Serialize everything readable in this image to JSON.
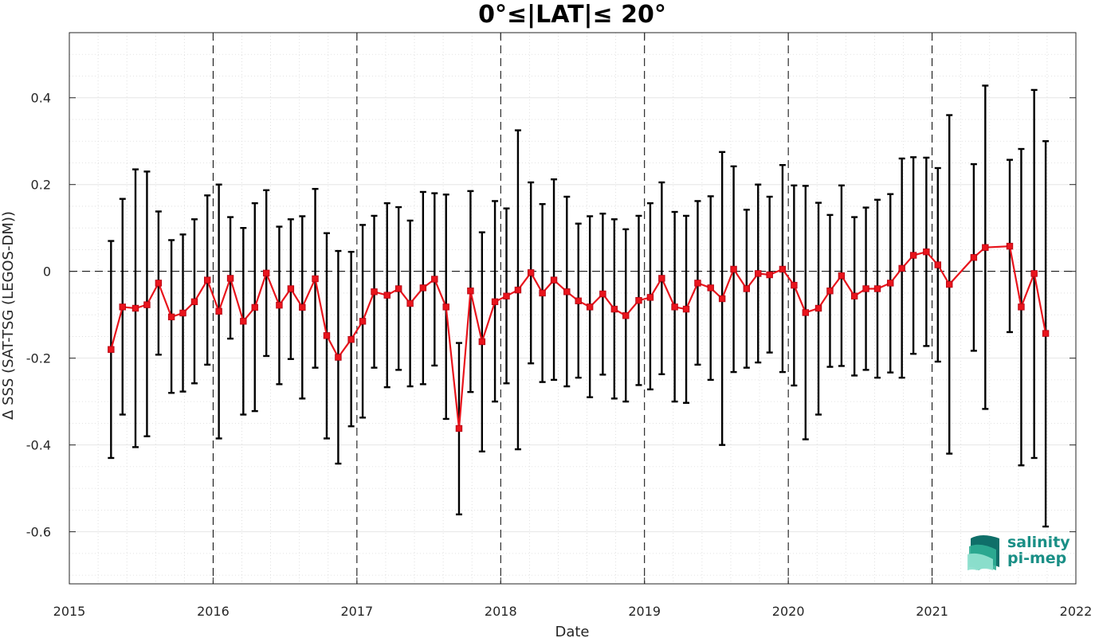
{
  "chart_data": {
    "type": "line",
    "title": "0°≤|LAT|≤ 20°",
    "xlabel": "Date",
    "ylabel": "Δ SSS (SAT-TSG (LEGOS-DM))",
    "xlim": [
      2015,
      2022
    ],
    "ylim": [
      -0.72,
      0.55
    ],
    "x_ticks": [
      2015,
      2016,
      2017,
      2018,
      2019,
      2020,
      2021,
      2022
    ],
    "y_ticks": [
      {
        "value": 0.4,
        "label": "0.4"
      },
      {
        "value": 0.2,
        "label": "0.2"
      },
      {
        "value": 0,
        "label": "0"
      },
      {
        "value": -0.2,
        "label": "-0.2"
      },
      {
        "value": -0.4,
        "label": "-0.4"
      },
      {
        "value": -0.6,
        "label": "-0.6"
      }
    ],
    "grid": true,
    "series": [
      {
        "color": "#e8141c",
        "marker": "square",
        "points": [
          {
            "x": 2015.29,
            "y": -0.18,
            "lo": -0.43,
            "hi": 0.07
          },
          {
            "x": 2015.37,
            "y": -0.082,
            "lo": -0.33,
            "hi": 0.167
          },
          {
            "x": 2015.46,
            "y": -0.085,
            "lo": -0.405,
            "hi": 0.235
          },
          {
            "x": 2015.54,
            "y": -0.077,
            "lo": -0.38,
            "hi": 0.23
          },
          {
            "x": 2015.62,
            "y": -0.027,
            "lo": -0.192,
            "hi": 0.138
          },
          {
            "x": 2015.71,
            "y": -0.105,
            "lo": -0.28,
            "hi": 0.072
          },
          {
            "x": 2015.79,
            "y": -0.096,
            "lo": -0.277,
            "hi": 0.085
          },
          {
            "x": 2015.87,
            "y": -0.07,
            "lo": -0.258,
            "hi": 0.12
          },
          {
            "x": 2015.96,
            "y": -0.02,
            "lo": -0.215,
            "hi": 0.175
          },
          {
            "x": 2016.04,
            "y": -0.092,
            "lo": -0.385,
            "hi": 0.2
          },
          {
            "x": 2016.12,
            "y": -0.016,
            "lo": -0.155,
            "hi": 0.125
          },
          {
            "x": 2016.21,
            "y": -0.115,
            "lo": -0.33,
            "hi": 0.1
          },
          {
            "x": 2016.29,
            "y": -0.083,
            "lo": -0.322,
            "hi": 0.157
          },
          {
            "x": 2016.37,
            "y": -0.004,
            "lo": -0.195,
            "hi": 0.187
          },
          {
            "x": 2016.46,
            "y": -0.078,
            "lo": -0.26,
            "hi": 0.103
          },
          {
            "x": 2016.54,
            "y": -0.04,
            "lo": -0.202,
            "hi": 0.12
          },
          {
            "x": 2016.62,
            "y": -0.083,
            "lo": -0.293,
            "hi": 0.127
          },
          {
            "x": 2016.71,
            "y": -0.017,
            "lo": -0.222,
            "hi": 0.19
          },
          {
            "x": 2016.79,
            "y": -0.148,
            "lo": -0.385,
            "hi": 0.088
          },
          {
            "x": 2016.87,
            "y": -0.198,
            "lo": -0.443,
            "hi": 0.047
          },
          {
            "x": 2016.96,
            "y": -0.157,
            "lo": -0.357,
            "hi": 0.045
          },
          {
            "x": 2017.04,
            "y": -0.115,
            "lo": -0.337,
            "hi": 0.107
          },
          {
            "x": 2017.12,
            "y": -0.047,
            "lo": -0.222,
            "hi": 0.128
          },
          {
            "x": 2017.21,
            "y": -0.055,
            "lo": -0.267,
            "hi": 0.157
          },
          {
            "x": 2017.29,
            "y": -0.04,
            "lo": -0.227,
            "hi": 0.148
          },
          {
            "x": 2017.37,
            "y": -0.074,
            "lo": -0.265,
            "hi": 0.117
          },
          {
            "x": 2017.46,
            "y": -0.038,
            "lo": -0.26,
            "hi": 0.183
          },
          {
            "x": 2017.54,
            "y": -0.018,
            "lo": -0.217,
            "hi": 0.18
          },
          {
            "x": 2017.62,
            "y": -0.082,
            "lo": -0.34,
            "hi": 0.177
          },
          {
            "x": 2017.71,
            "y": -0.362,
            "lo": -0.56,
            "hi": -0.165
          },
          {
            "x": 2017.79,
            "y": -0.045,
            "lo": -0.278,
            "hi": 0.185
          },
          {
            "x": 2017.87,
            "y": -0.162,
            "lo": -0.415,
            "hi": 0.09
          },
          {
            "x": 2017.96,
            "y": -0.07,
            "lo": -0.3,
            "hi": 0.162
          },
          {
            "x": 2018.04,
            "y": -0.057,
            "lo": -0.258,
            "hi": 0.145
          },
          {
            "x": 2018.12,
            "y": -0.043,
            "lo": -0.41,
            "hi": 0.325
          },
          {
            "x": 2018.21,
            "y": -0.003,
            "lo": -0.212,
            "hi": 0.205
          },
          {
            "x": 2018.29,
            "y": -0.05,
            "lo": -0.255,
            "hi": 0.155
          },
          {
            "x": 2018.37,
            "y": -0.02,
            "lo": -0.25,
            "hi": 0.212
          },
          {
            "x": 2018.46,
            "y": -0.047,
            "lo": -0.265,
            "hi": 0.172
          },
          {
            "x": 2018.54,
            "y": -0.068,
            "lo": -0.245,
            "hi": 0.11
          },
          {
            "x": 2018.62,
            "y": -0.082,
            "lo": -0.29,
            "hi": 0.127
          },
          {
            "x": 2018.71,
            "y": -0.052,
            "lo": -0.238,
            "hi": 0.133
          },
          {
            "x": 2018.79,
            "y": -0.087,
            "lo": -0.293,
            "hi": 0.12
          },
          {
            "x": 2018.87,
            "y": -0.102,
            "lo": -0.3,
            "hi": 0.097
          },
          {
            "x": 2018.96,
            "y": -0.067,
            "lo": -0.262,
            "hi": 0.128
          },
          {
            "x": 2019.04,
            "y": -0.06,
            "lo": -0.272,
            "hi": 0.157
          },
          {
            "x": 2019.12,
            "y": -0.016,
            "lo": -0.237,
            "hi": 0.205
          },
          {
            "x": 2019.21,
            "y": -0.082,
            "lo": -0.3,
            "hi": 0.137
          },
          {
            "x": 2019.29,
            "y": -0.087,
            "lo": -0.303,
            "hi": 0.128
          },
          {
            "x": 2019.37,
            "y": -0.027,
            "lo": -0.215,
            "hi": 0.162
          },
          {
            "x": 2019.46,
            "y": -0.038,
            "lo": -0.25,
            "hi": 0.173
          },
          {
            "x": 2019.54,
            "y": -0.063,
            "lo": -0.4,
            "hi": 0.275
          },
          {
            "x": 2019.62,
            "y": 0.005,
            "lo": -0.232,
            "hi": 0.242
          },
          {
            "x": 2019.71,
            "y": -0.04,
            "lo": -0.222,
            "hi": 0.142
          },
          {
            "x": 2019.79,
            "y": -0.005,
            "lo": -0.21,
            "hi": 0.2
          },
          {
            "x": 2019.87,
            "y": -0.008,
            "lo": -0.187,
            "hi": 0.172
          },
          {
            "x": 2019.96,
            "y": 0.005,
            "lo": -0.232,
            "hi": 0.245
          },
          {
            "x": 2020.04,
            "y": -0.032,
            "lo": -0.263,
            "hi": 0.198
          },
          {
            "x": 2020.12,
            "y": -0.095,
            "lo": -0.387,
            "hi": 0.197
          },
          {
            "x": 2020.21,
            "y": -0.085,
            "lo": -0.33,
            "hi": 0.158
          },
          {
            "x": 2020.29,
            "y": -0.045,
            "lo": -0.22,
            "hi": 0.13
          },
          {
            "x": 2020.37,
            "y": -0.01,
            "lo": -0.218,
            "hi": 0.198
          },
          {
            "x": 2020.46,
            "y": -0.057,
            "lo": -0.24,
            "hi": 0.125
          },
          {
            "x": 2020.54,
            "y": -0.04,
            "lo": -0.227,
            "hi": 0.147
          },
          {
            "x": 2020.62,
            "y": -0.04,
            "lo": -0.245,
            "hi": 0.165
          },
          {
            "x": 2020.71,
            "y": -0.027,
            "lo": -0.233,
            "hi": 0.178
          },
          {
            "x": 2020.79,
            "y": 0.007,
            "lo": -0.245,
            "hi": 0.26
          },
          {
            "x": 2020.87,
            "y": 0.037,
            "lo": -0.19,
            "hi": 0.263
          },
          {
            "x": 2020.96,
            "y": 0.045,
            "lo": -0.172,
            "hi": 0.262
          },
          {
            "x": 2021.04,
            "y": 0.015,
            "lo": -0.208,
            "hi": 0.238
          },
          {
            "x": 2021.12,
            "y": -0.03,
            "lo": -0.42,
            "hi": 0.36
          },
          {
            "x": 2021.29,
            "y": 0.032,
            "lo": -0.183,
            "hi": 0.247
          },
          {
            "x": 2021.37,
            "y": 0.055,
            "lo": -0.317,
            "hi": 0.428
          },
          {
            "x": 2021.54,
            "y": 0.058,
            "lo": -0.14,
            "hi": 0.257
          },
          {
            "x": 2021.62,
            "y": -0.082,
            "lo": -0.447,
            "hi": 0.282
          },
          {
            "x": 2021.71,
            "y": -0.005,
            "lo": -0.43,
            "hi": 0.418
          },
          {
            "x": 2021.79,
            "y": -0.143,
            "lo": -0.588,
            "hi": 0.3
          }
        ]
      }
    ]
  },
  "logo": {
    "line1": "salinity",
    "line2": "pi-mep",
    "colors": {
      "text": "#1a8f86",
      "dark": "#0f6f69",
      "light": "#8fe0cf"
    }
  }
}
